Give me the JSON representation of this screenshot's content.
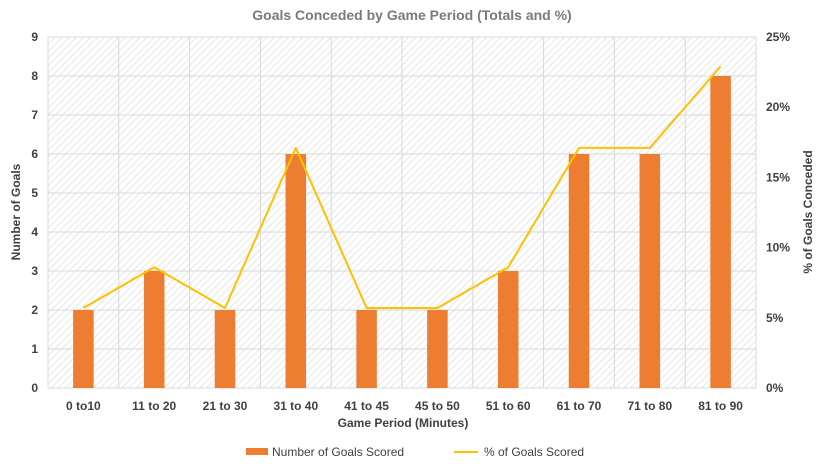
{
  "chart_data": {
    "type": "bar",
    "title": "Goals Conceded by Game Period (Totals and %)",
    "xlabel": "Game Period (Minutes)",
    "ylabel": "Number of Goals",
    "y2label": "% of Goals Conceded",
    "categories": [
      "0 to10",
      "11 to 20",
      "21 to 30",
      "31 to 40",
      "41 to 45",
      "45 to 50",
      "51 to 60",
      "61 to 70",
      "71 to 80",
      "81 to 90"
    ],
    "ylim": [
      0,
      9
    ],
    "yticks": [
      "0",
      "1",
      "2",
      "3",
      "4",
      "5",
      "6",
      "7",
      "8",
      "9"
    ],
    "y2lim": [
      0,
      25
    ],
    "y2ticks": [
      "0%",
      "5%",
      "10%",
      "15%",
      "20%",
      "25%"
    ],
    "grid": true,
    "legend_position": "bottom",
    "series": [
      {
        "name": "Number of Goals Scored",
        "type": "bar",
        "axis": "left",
        "color": "#ed7d31",
        "values": [
          2,
          3,
          2,
          6,
          2,
          2,
          3,
          6,
          6,
          8
        ]
      },
      {
        "name": "% of Goals Scored",
        "type": "line",
        "axis": "right",
        "color": "#ffc000",
        "values": [
          5.7,
          8.6,
          5.7,
          17.1,
          5.7,
          5.7,
          8.6,
          17.1,
          17.1,
          22.9
        ]
      }
    ]
  }
}
